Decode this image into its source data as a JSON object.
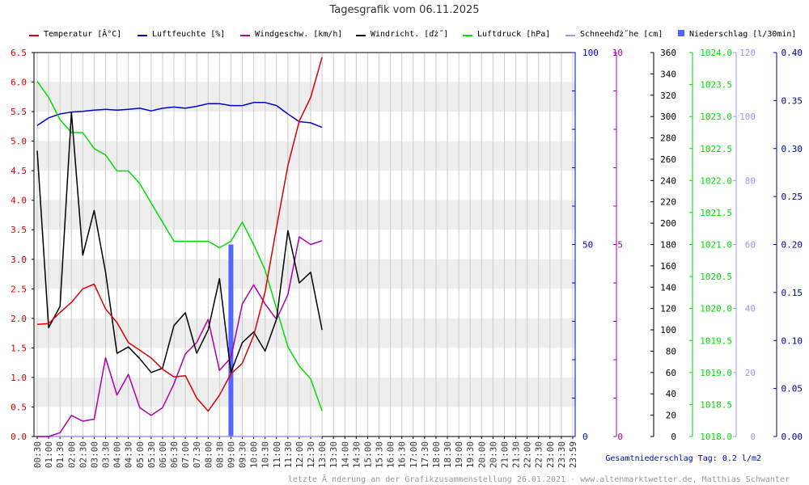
{
  "chart_data": {
    "type": "line",
    "title": "Tagesgrafik vom 06.11.2025",
    "colors": {
      "temperature": "#dd0000",
      "humidity": "#0000cc",
      "wind_speed": "#aa00aa",
      "wind_direction": "#000000",
      "pressure": "#00dd00",
      "snow": "#9999ee",
      "rain": "#5566ff",
      "band": "#eeeeee",
      "grid": "#cccccc",
      "rain_axis": "#000099"
    },
    "legend": [
      {
        "key": "temperature",
        "label": "Temperatur [Â°C]"
      },
      {
        "key": "humidity",
        "label": "Luftfeuchte [%]"
      },
      {
        "key": "wind_speed",
        "label": "Windgeschw. [km/h]"
      },
      {
        "key": "wind_direction",
        "label": "Windricht. [ďż˝]"
      },
      {
        "key": "pressure",
        "label": "Luftdruck [hPa]"
      },
      {
        "key": "snow",
        "label": "Schneehďż˝he [cm]"
      },
      {
        "key": "rain",
        "label": "Niederschlag [l/30min]"
      }
    ],
    "x_ticks": [
      "00:30",
      "01:00",
      "01:30",
      "02:00",
      "02:30",
      "03:00",
      "03:30",
      "04:00",
      "04:30",
      "05:00",
      "05:30",
      "06:00",
      "06:30",
      "07:00",
      "07:30",
      "08:00",
      "08:30",
      "09:00",
      "09:30",
      "10:00",
      "10:30",
      "11:00",
      "11:30",
      "12:00",
      "12:30",
      "13:00",
      "13:30",
      "14:00",
      "14:30",
      "15:00",
      "15:30",
      "16:00",
      "16:30",
      "17:00",
      "17:30",
      "18:00",
      "18:30",
      "19:00",
      "19:30",
      "20:00",
      "20:30",
      "21:00",
      "21:30",
      "22:00",
      "22:30",
      "23:00",
      "23:30",
      "23:59"
    ],
    "axes": {
      "temperature": {
        "min": 0,
        "max": 6.5,
        "ticks": [
          "0.0",
          "0.5",
          "1.0",
          "1.5",
          "2.0",
          "2.5",
          "3.0",
          "3.5",
          "4.0",
          "4.5",
          "5.0",
          "5.5",
          "6.0",
          "6.5"
        ]
      },
      "humidity": {
        "min": 0,
        "max": 100,
        "ticks": [
          "0",
          "50",
          "100"
        ]
      },
      "wind_speed": {
        "min": 0,
        "max": 10,
        "ticks": [
          "0",
          "5",
          "10"
        ]
      },
      "wind_direction": {
        "min": 0,
        "max": 360,
        "ticks": [
          "0",
          "20",
          "40",
          "60",
          "80",
          "100",
          "120",
          "140",
          "160",
          "180",
          "200",
          "220",
          "240",
          "260",
          "280",
          "300",
          "320",
          "340",
          "360"
        ]
      },
      "pressure": {
        "min": 1018.0,
        "max": 1024.0,
        "ticks": [
          "1018.0",
          "1018.5",
          "1019.0",
          "1019.5",
          "1020.0",
          "1020.5",
          "1021.0",
          "1021.5",
          "1022.0",
          "1022.5",
          "1023.0",
          "1023.5",
          "1024.0"
        ]
      },
      "snow": {
        "min": 0,
        "max": 120,
        "ticks": [
          "0",
          "20",
          "40",
          "60",
          "80",
          "100",
          "120"
        ]
      },
      "rain": {
        "min": 0,
        "max": 0.4,
        "ticks": [
          "0.00",
          "0.05",
          "0.10",
          "0.15",
          "0.20",
          "0.25",
          "0.30",
          "0.35",
          "0.40"
        ]
      }
    },
    "series": {
      "temperature": [
        1.9,
        1.91,
        2.1,
        2.27,
        2.5,
        2.58,
        2.16,
        1.93,
        1.59,
        1.46,
        1.33,
        1.14,
        1.01,
        1.03,
        0.65,
        0.43,
        0.7,
        1.06,
        1.24,
        1.71,
        2.45,
        3.54,
        4.59,
        5.34,
        5.74,
        6.42
      ],
      "humidity": [
        81,
        83,
        84,
        84.5,
        84.7,
        85,
        85.2,
        85,
        85.2,
        85.5,
        84.8,
        85.5,
        85.8,
        85.5,
        86,
        86.7,
        86.7,
        86.2,
        86.2,
        87,
        87,
        86.2,
        84,
        82,
        81.7,
        80.5
      ],
      "wind_speed": [
        0,
        0,
        0.1,
        0.55,
        0.4,
        0.45,
        2.05,
        1.08,
        1.62,
        0.75,
        0.55,
        0.75,
        1.37,
        2.15,
        2.45,
        3.05,
        1.72,
        2.05,
        3.45,
        3.95,
        3.45,
        3.05,
        3.7,
        5.2,
        5.0,
        5.1
      ],
      "wind_direction": [
        268,
        102,
        122,
        304,
        170,
        212,
        154,
        78,
        84,
        73,
        60,
        64,
        104,
        116,
        78,
        100,
        148,
        60,
        88,
        98,
        80,
        110,
        193,
        144,
        154,
        100
      ],
      "pressure": [
        1023.55,
        1023.3,
        1022.95,
        1022.75,
        1022.75,
        1022.5,
        1022.4,
        1022.15,
        1022.15,
        1021.95,
        1021.65,
        1021.35,
        1021.05,
        1021.05,
        1021.05,
        1021.05,
        1020.95,
        1021.05,
        1021.35,
        1021.0,
        1020.6,
        1020.0,
        1019.4,
        1019.1,
        1018.9,
        1018.4
      ],
      "snow": [
        0,
        0,
        0,
        0,
        0,
        0,
        0,
        0,
        0,
        0,
        0,
        0,
        0,
        0,
        0,
        0,
        0,
        0,
        0,
        0,
        0,
        0,
        0,
        0,
        0,
        0
      ],
      "rain": [
        0,
        0,
        0,
        0,
        0,
        0,
        0,
        0,
        0,
        0,
        0,
        0,
        0,
        0,
        0,
        0,
        0,
        0.2,
        0,
        0,
        0,
        0,
        0,
        0,
        0,
        0
      ]
    },
    "total_text": "Gesamtniederschlag Tag: 0.2 l/m2",
    "footer_text": "letzte Ă nderung an der Grafikzusammenstellung 26.01.2021 - www.altenmarktwetter.de, Matthias Schwanter",
    "grid": true
  }
}
